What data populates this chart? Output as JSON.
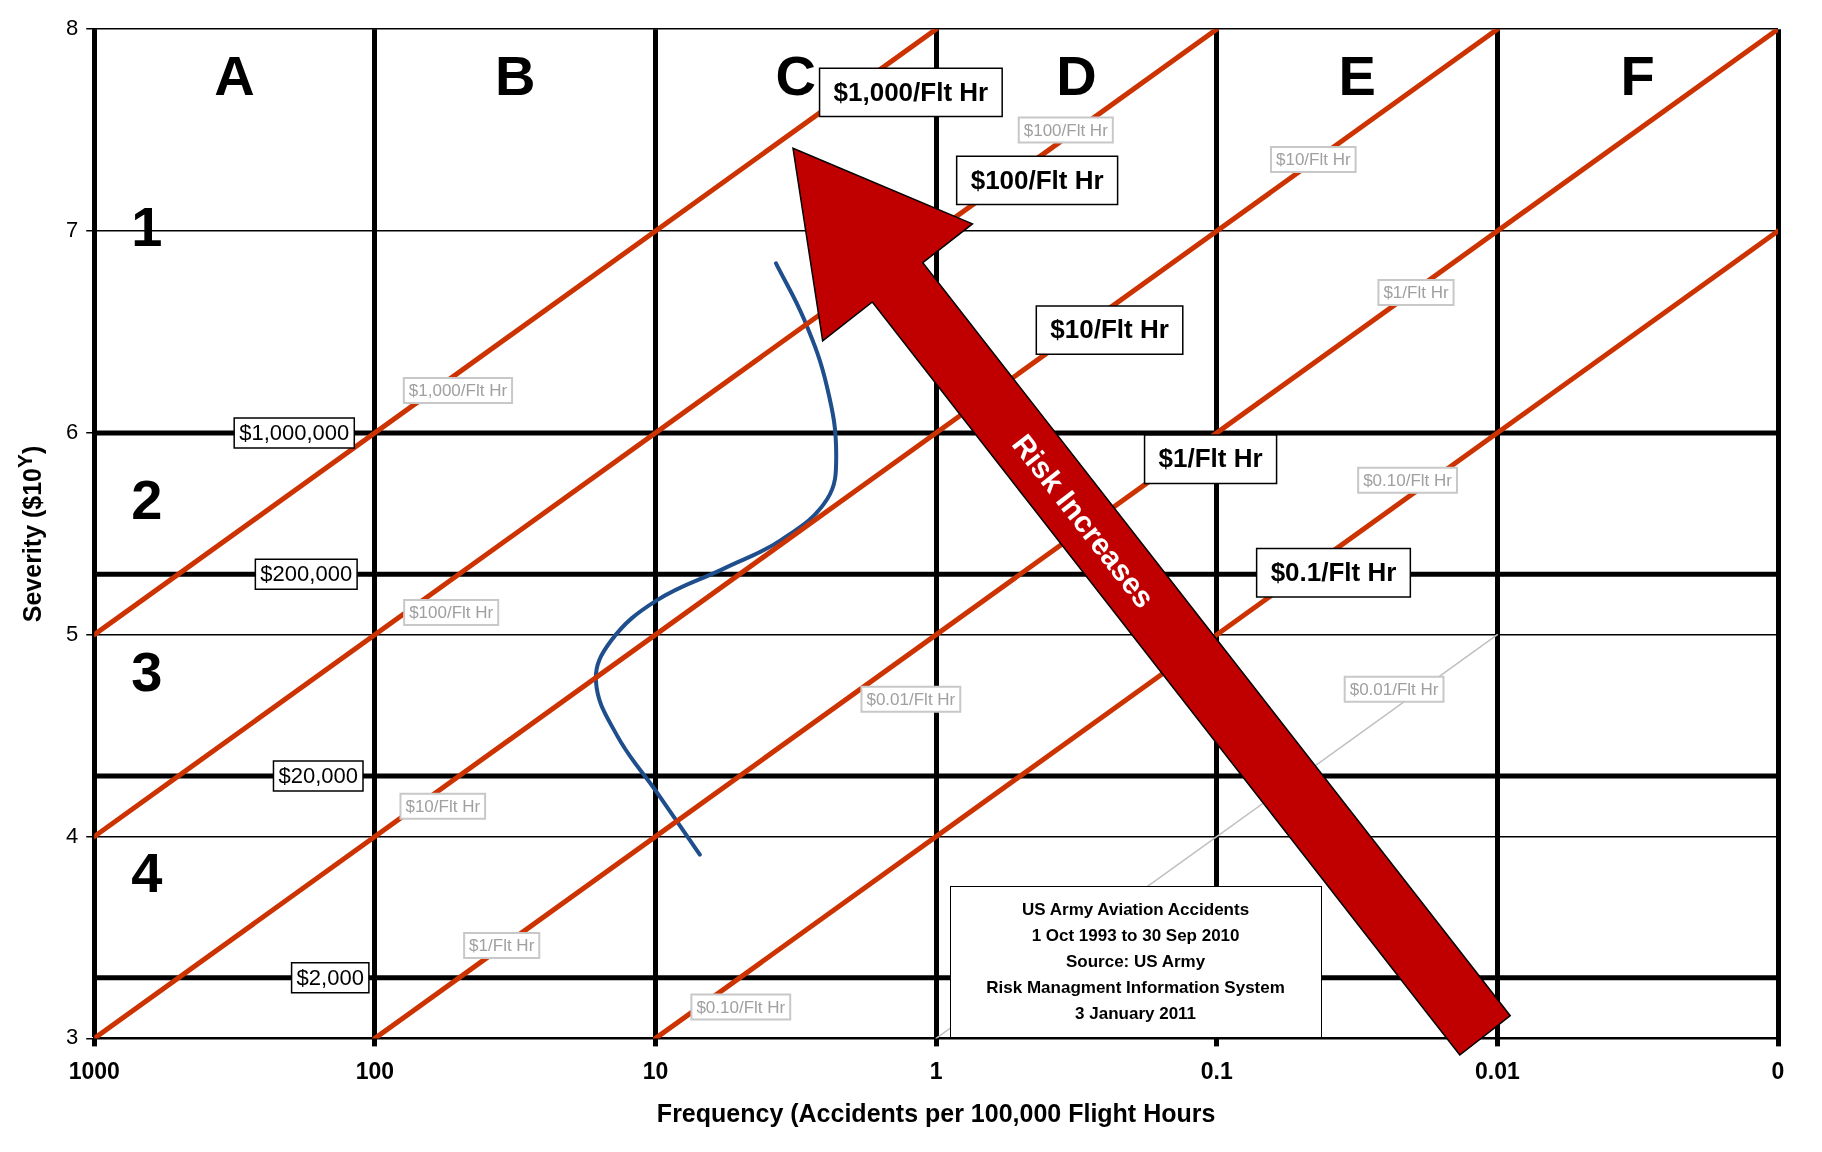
{
  "chart_data": {
    "type": "line",
    "xlabel": "Frequency (Accidents per 100,000 Flight Hours",
    "ylabel": "Severity ($10$^{Y}$)",
    "log": "x",
    "xlim": [
      1000,
      0.001
    ],
    "xticks": [
      1000,
      100,
      10,
      1,
      0.1,
      0.01,
      {
        "value": 0.001,
        "label": "0"
      }
    ],
    "ylim": [
      3,
      8
    ],
    "yticks": [
      3,
      4,
      5,
      6,
      7,
      8
    ],
    "grid": true,
    "marker": "none",
    "series": [
      {
        "name": "$1,000/Flt Hr",
        "color": "#cc3300",
        "x": [
          1000,
          1
        ],
        "values": [
          5,
          8
        ]
      },
      {
        "name": "$100/Flt Hr",
        "color": "#cc3300",
        "x": [
          1000,
          0.1
        ],
        "values": [
          4,
          8
        ]
      },
      {
        "name": "$10/Flt Hr",
        "color": "#cc3300",
        "x": [
          1000,
          0.01
        ],
        "values": [
          3,
          8
        ]
      },
      {
        "name": "$1/Flt Hr",
        "color": "#cc3300",
        "x": [
          100,
          0.001
        ],
        "values": [
          3,
          8
        ]
      },
      {
        "name": "$0.1/Flt Hr",
        "color": "#cc3300",
        "x": [
          10,
          0.001
        ],
        "values": [
          3,
          7
        ]
      },
      {
        "color": "#c0c0c0",
        "x": [
          1,
          0.01
        ],
        "values": [
          3,
          5
        ]
      },
      {
        "color": "#1f4e8c",
        "x": [
          6.95,
          9.9,
          13.7,
          16.3,
          14.4,
          9.9,
          5.66,
          3.56,
          2.45,
          2.27,
          2.45,
          2.95,
          3.72
        ],
        "values": [
          3.91,
          4.22,
          4.5,
          4.77,
          4.97,
          5.17,
          5.33,
          5.47,
          5.67,
          5.89,
          6.23,
          6.56,
          6.84
        ]
      }
    ],
    "ref_lines": [
      {
        "axis": "y",
        "value": 6
      },
      {
        "axis": "y",
        "value": 5.3
      },
      {
        "axis": "y",
        "value": 4.3
      },
      {
        "axis": "y",
        "value": 3.3
      }
    ],
    "annotations": [
      "Risk Increases",
      "US Army Aviation Accidents\n1 Oct 1993 to 30 Sep 2010\nSource: US Army\nRisk Managment Information System\n3 January 2011",
      "A",
      "B",
      "C",
      "D",
      "E",
      "F",
      "1",
      "2",
      "3",
      "4",
      "$1,000/Flt Hr",
      "$100/Flt Hr",
      "$10/Flt Hr",
      "$1/Flt Hr",
      "$0.10/Flt Hr",
      "$0.01/Flt Hr",
      "$100/Flt Hr",
      "$10/Flt Hr",
      "$1/Flt Hr",
      "$0.10/Flt Hr",
      "$0.01/Flt Hr",
      "$1,000,000",
      "$200,000",
      "$20,000",
      "$2,000"
    ]
  }
}
